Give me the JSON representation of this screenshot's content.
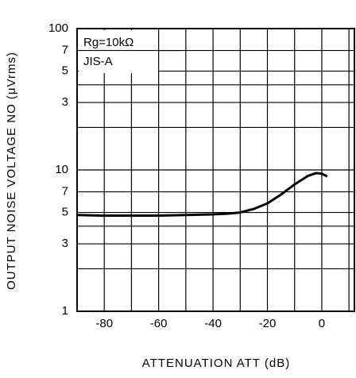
{
  "chart_data": {
    "type": "line",
    "y_label": "OUTPUT NOISE VOLTAGE  NO (μVrms)",
    "x_label": "ATTENUATION  ATT (dB)",
    "annotations": [
      "Rg=10kΩ",
      "JIS-A"
    ],
    "x": [
      -90,
      -80,
      -70,
      -60,
      -50,
      -40,
      -35,
      -30,
      -25,
      -20,
      -15,
      -10,
      -5,
      -2,
      0,
      2
    ],
    "series": [
      {
        "color": "#000000",
        "values": [
          4.8,
          4.75,
          4.75,
          4.75,
          4.8,
          4.85,
          4.9,
          5.0,
          5.3,
          5.8,
          6.7,
          7.9,
          9.1,
          9.5,
          9.4,
          9.0
        ]
      }
    ],
    "xlim": [
      -90,
      12
    ],
    "ylim": [
      1,
      100
    ],
    "log_y": true,
    "grid": true,
    "xticks": [
      -80,
      -60,
      -40,
      -20,
      0
    ],
    "minor_xticks": [
      -70,
      -50,
      -30,
      -10,
      10
    ],
    "yticks": [
      1,
      3,
      5,
      7,
      10,
      {
        "value": 30,
        "label": "3"
      },
      {
        "value": 50,
        "label": "5"
      },
      {
        "value": 70,
        "label": "7"
      },
      100
    ],
    "minor_yticks": [
      2,
      4,
      20,
      40
    ]
  }
}
